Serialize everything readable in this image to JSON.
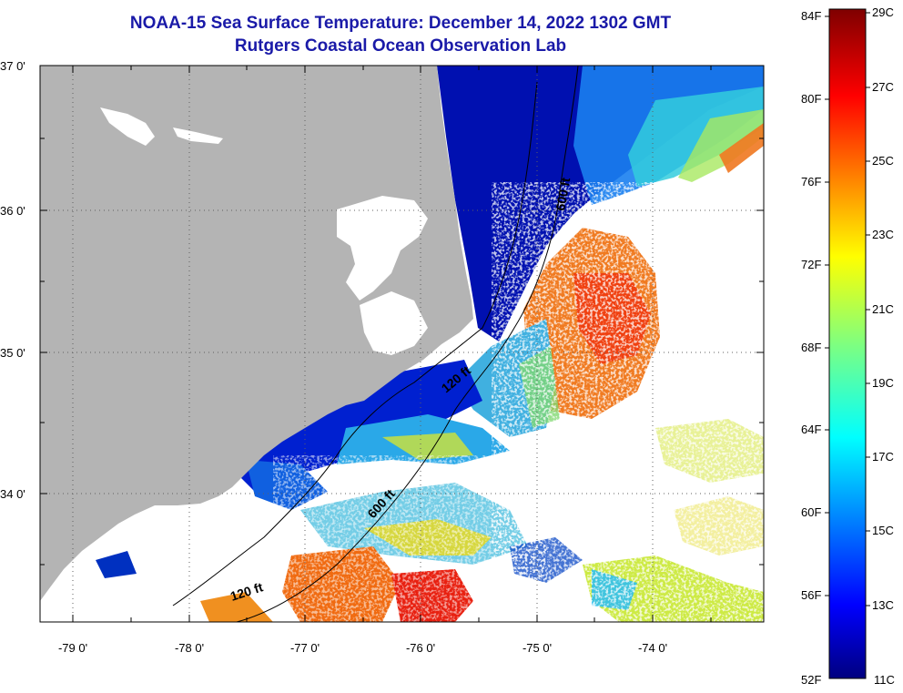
{
  "title": "NOAA-15 Sea Surface Temperature:  December 14, 2022 1302 GMT",
  "subtitle": "Rutgers Coastal Ocean Observation Lab",
  "map": {
    "lat_labels": [
      "37 0'",
      "36 0'",
      "35 0'",
      "34 0'"
    ],
    "lon_labels": [
      "-79 0'",
      "-78 0'",
      "-77 0'",
      "-76 0'",
      "-75 0'",
      "-74 0'"
    ],
    "contour_labels": [
      "600 ft",
      "120 ft",
      "600 ft",
      "120 ft"
    ],
    "land_color": "#b4b4b4",
    "cloud_color": "#ffffff"
  },
  "colorbar": {
    "f_labels": [
      "84F",
      "80F",
      "76F",
      "72F",
      "68F",
      "64F",
      "60F",
      "56F",
      "52F"
    ],
    "c_labels": [
      "29C",
      "27C",
      "25C",
      "23C",
      "21C",
      "19C",
      "17C",
      "15C",
      "13C",
      "11C"
    ]
  }
}
